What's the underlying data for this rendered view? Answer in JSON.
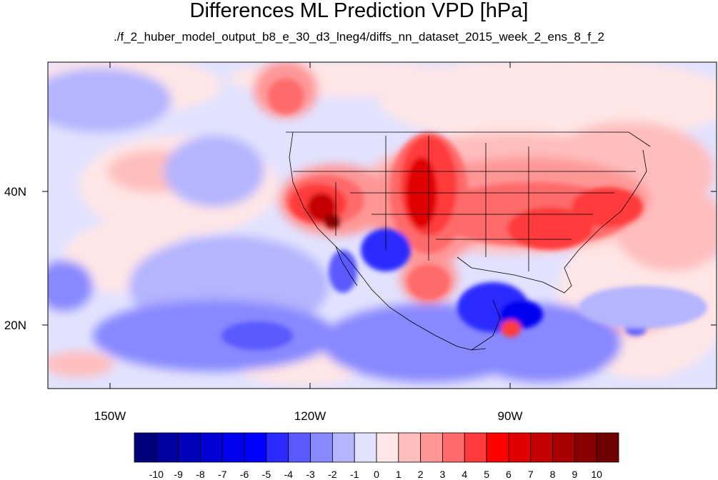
{
  "title": "Differences ML Prediction VPD [hPa]",
  "subtitle": "./f_2_huber_model_output_b8_e_30_d3_lneg4/diffs_nn_dataset_2015_week_2_ens_8_f_2",
  "map": {
    "lon_labels": [
      "150W",
      "120W",
      "90W"
    ],
    "lat_labels": [
      "40N",
      "20N"
    ]
  },
  "colorbar": {
    "labels": [
      "-10",
      "-9",
      "-8",
      "-7",
      "-6",
      "-5",
      "-4",
      "-3",
      "-2",
      "-1",
      "0",
      "1",
      "2",
      "3",
      "4",
      "5",
      "6",
      "7",
      "8",
      "9",
      "10"
    ],
    "colors": [
      "#00007a",
      "#00009e",
      "#0000b8",
      "#0000d4",
      "#0000ee",
      "#0000ff",
      "#2b2bff",
      "#5a5aff",
      "#8888ff",
      "#b4b4ff",
      "#e2e2ff",
      "#ffe6e6",
      "#ffbebe",
      "#ff9696",
      "#ff6a6a",
      "#ff3a3a",
      "#ff0000",
      "#e00000",
      "#c40000",
      "#a80000",
      "#8a0000",
      "#6e0000"
    ]
  }
}
